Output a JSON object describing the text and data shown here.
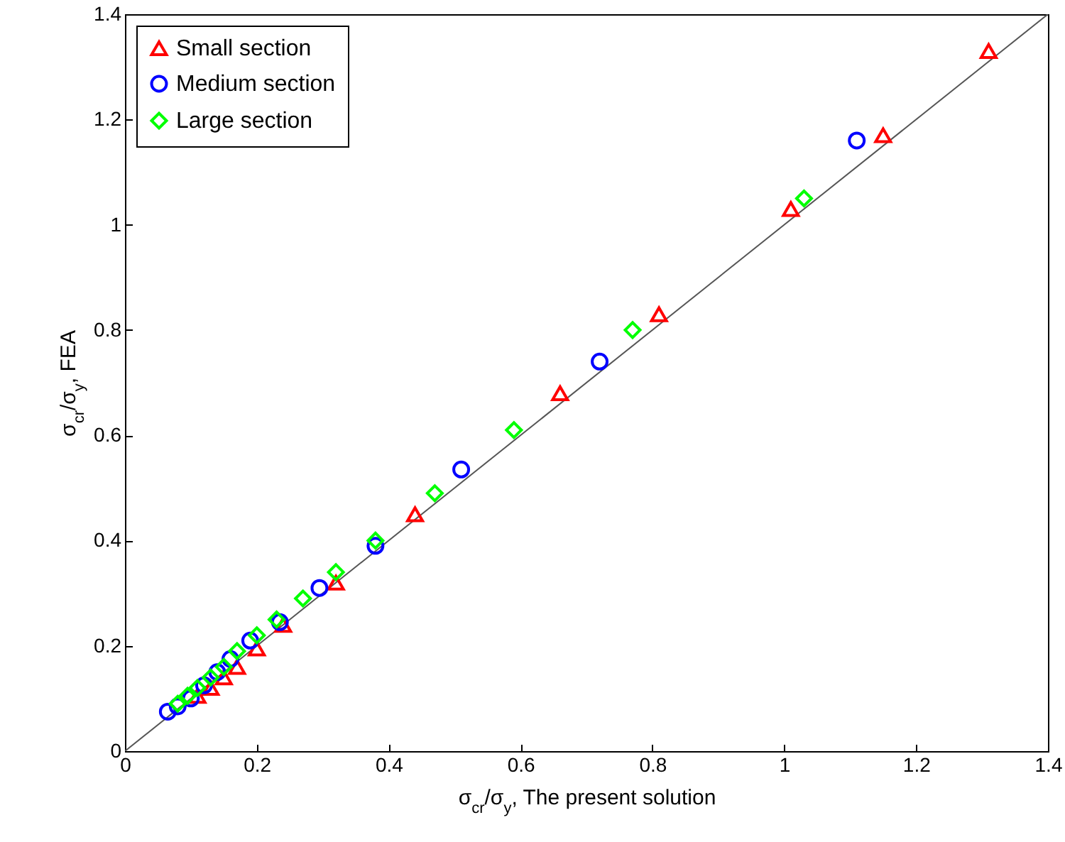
{
  "chart_data": {
    "type": "scatter",
    "xlabel": "σ$_{cr}$/σ$_{y}$, The present solution",
    "ylabel": "σ$_{cr}$/σ$_{y}$, FEA",
    "xlim": [
      0,
      1.4
    ],
    "ylim": [
      0,
      1.4
    ],
    "xticks": [
      0,
      0.2,
      0.4,
      0.6,
      0.8,
      1,
      1.2,
      1.4
    ],
    "yticks": [
      0,
      0.2,
      0.4,
      0.6,
      0.8,
      1,
      1.2,
      1.4
    ],
    "grid": false,
    "legend": "top left",
    "series": [
      {
        "type": "line",
        "color": "#555555",
        "marker": "none",
        "line_style": "solid",
        "x": [
          0,
          1.4
        ],
        "values": [
          0,
          1.4
        ]
      },
      {
        "name": "Small section",
        "color": "#ff0000",
        "marker": "triangle",
        "x": [
          0.11,
          0.13,
          0.15,
          0.17,
          0.2,
          0.24,
          0.32,
          0.44,
          0.66,
          0.81,
          1.01,
          1.15,
          1.31
        ],
        "values": [
          0.105,
          0.12,
          0.14,
          0.16,
          0.195,
          0.24,
          0.32,
          0.45,
          0.68,
          0.83,
          1.03,
          1.17,
          1.33
        ]
      },
      {
        "name": "Medium section",
        "color": "#0000ff",
        "marker": "circle",
        "x": [
          0.065,
          0.08,
          0.1,
          0.12,
          0.14,
          0.16,
          0.19,
          0.235,
          0.295,
          0.38,
          0.51,
          0.72,
          1.11
        ],
        "values": [
          0.075,
          0.085,
          0.1,
          0.125,
          0.15,
          0.175,
          0.21,
          0.245,
          0.31,
          0.39,
          0.535,
          0.74,
          1.16
        ]
      },
      {
        "name": "Large section",
        "color": "#00ff00",
        "marker": "diamond",
        "x": [
          0.08,
          0.095,
          0.11,
          0.13,
          0.15,
          0.17,
          0.2,
          0.23,
          0.27,
          0.32,
          0.38,
          0.47,
          0.59,
          0.77,
          1.03
        ],
        "values": [
          0.09,
          0.105,
          0.12,
          0.14,
          0.16,
          0.19,
          0.22,
          0.25,
          0.29,
          0.34,
          0.4,
          0.49,
          0.61,
          0.8,
          1.05
        ]
      }
    ]
  }
}
